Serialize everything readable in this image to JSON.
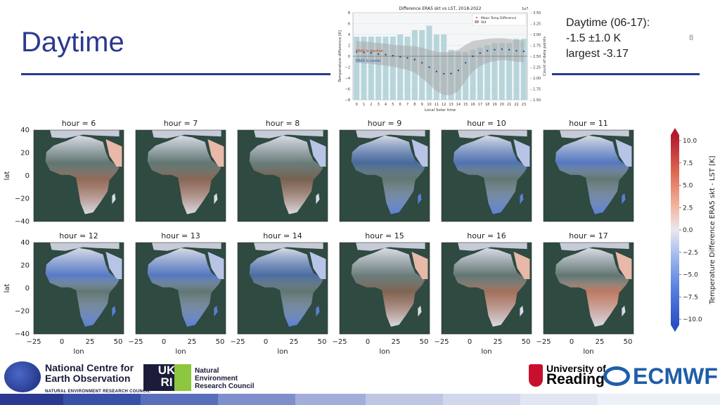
{
  "slide": {
    "title": "Daytime",
    "number": "8",
    "summary": [
      "Daytime (06-17):",
      "-1.5 ±1.0 K",
      "largest -3.17"
    ]
  },
  "colors": {
    "title": "#2b3990",
    "ocean": "#2e4a41",
    "warm": "#e2856b",
    "cool": "#5b7fd6",
    "neutral": "#d8dbe5",
    "bar_fill": "#a8cdd3",
    "std_band": "#a9a9a9"
  },
  "maps": {
    "ylabel": "lat",
    "xlabel": "lon",
    "yticks": [
      "40",
      "20",
      "0",
      "−20",
      "−40"
    ],
    "xticks": [
      "−25",
      "0",
      "25",
      "50"
    ],
    "panels": [
      {
        "label": "hour = 6",
        "warm": 0.55,
        "cool": 0.15
      },
      {
        "label": "hour = 7",
        "warm": 0.5,
        "cool": 0.25
      },
      {
        "label": "hour = 8",
        "warm": 0.4,
        "cool": 0.35
      },
      {
        "label": "hour = 9",
        "warm": 0.2,
        "cool": 0.6
      },
      {
        "label": "hour = 10",
        "warm": 0.1,
        "cool": 0.75
      },
      {
        "label": "hour = 11",
        "warm": 0.05,
        "cool": 0.85
      },
      {
        "label": "hour = 12",
        "warm": 0.05,
        "cool": 0.9
      },
      {
        "label": "hour = 13",
        "warm": 0.05,
        "cool": 0.85
      },
      {
        "label": "hour = 14",
        "warm": 0.15,
        "cool": 0.65
      },
      {
        "label": "hour = 15",
        "warm": 0.45,
        "cool": 0.35
      },
      {
        "label": "hour = 16",
        "warm": 0.65,
        "cool": 0.15
      },
      {
        "label": "hour = 17",
        "warm": 0.8,
        "cool": 0.05
      }
    ]
  },
  "colorbar": {
    "label": "Temperature Difference ERA5 skt - LST [K]",
    "ticks": [
      "10.0",
      "7.5",
      "5.0",
      "2.5",
      "0.0",
      "−2.5",
      "−5.0",
      "−7.5",
      "−10.0"
    ],
    "range": [
      -10,
      10
    ]
  },
  "chart_data": {
    "type": "line",
    "title": "Difference ERA5 skt vs LST, 2018-2022",
    "xlabel": "Local Solar time",
    "ylabel": "Temperature difference [K]",
    "ylabel_right": "Count of data points",
    "right_axis_multiplier": "1e7",
    "x": [
      0,
      1,
      2,
      3,
      4,
      5,
      6,
      7,
      8,
      9,
      10,
      11,
      12,
      13,
      14,
      15,
      16,
      17,
      18,
      19,
      20,
      21,
      22,
      23
    ],
    "xticks": [
      "0",
      "1",
      "2",
      "3",
      "4",
      "5",
      "6",
      "7",
      "8",
      "9",
      "10",
      "11",
      "12",
      "13",
      "14",
      "15",
      "16",
      "17",
      "18",
      "19",
      "20",
      "21",
      "22",
      "23"
    ],
    "ylim": [
      -8,
      8
    ],
    "yticks": [
      "8",
      "6",
      "4",
      "2",
      "0",
      "−2",
      "−4",
      "−6",
      "−8"
    ],
    "y2lim": [
      1.5,
      3.5
    ],
    "y2ticks": [
      "3.50",
      "3.25",
      "3.00",
      "2.75",
      "2.50",
      "2.25",
      "2.00",
      "1.75",
      "1.50"
    ],
    "grid": true,
    "legend_position": "top-right",
    "annotations": [
      "ERA5 is warmer",
      "ERA5 is cooler"
    ],
    "series": [
      {
        "name": "Mean Temp Difference",
        "values": [
          0.8,
          0.7,
          0.6,
          0.4,
          0.3,
          0.1,
          -0.1,
          -0.3,
          -0.6,
          -1.2,
          -2.0,
          -2.8,
          -3.2,
          -3.17,
          -2.6,
          -1.2,
          0.0,
          0.6,
          1.0,
          1.2,
          1.3,
          1.2,
          1.0,
          0.9
        ]
      },
      {
        "name": "Std",
        "values": [
          2.0,
          2.0,
          2.0,
          2.0,
          2.0,
          2.0,
          2.1,
          2.2,
          2.4,
          2.8,
          3.2,
          3.6,
          3.9,
          4.0,
          3.8,
          3.3,
          2.8,
          2.4,
          2.2,
          2.1,
          2.0,
          2.0,
          2.0,
          2.0
        ]
      },
      {
        "name": "Count",
        "values": [
          2.95,
          2.95,
          2.95,
          2.95,
          2.95,
          2.95,
          3.0,
          2.95,
          3.1,
          3.1,
          3.2,
          3.0,
          3.0,
          2.65,
          2.6,
          2.6,
          2.65,
          2.7,
          2.75,
          2.8,
          2.8,
          2.8,
          2.9,
          2.9
        ]
      }
    ]
  }
}
